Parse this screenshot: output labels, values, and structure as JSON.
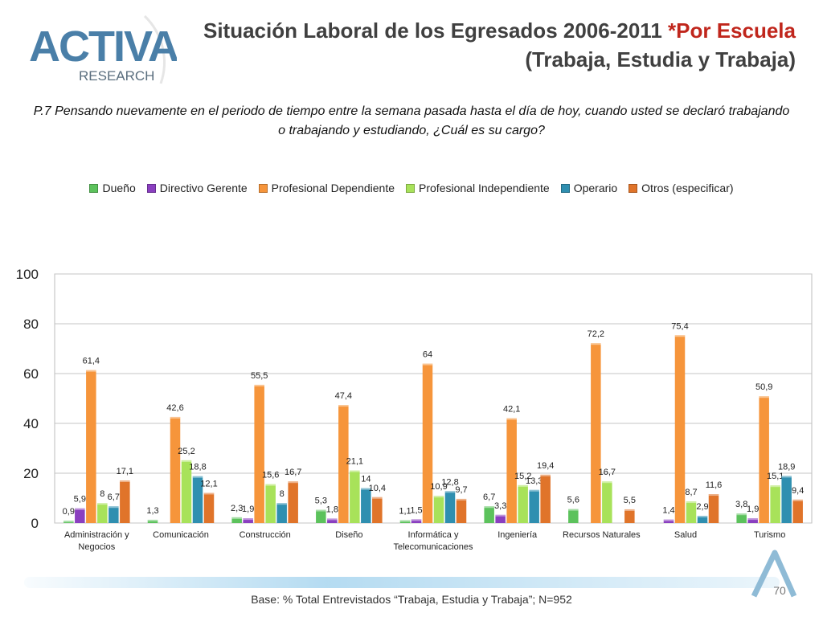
{
  "brand": {
    "name_top": "ACTIVA",
    "name_bottom": "RESEARCH"
  },
  "title": {
    "line1_main": "Situación Laboral de los Egresados 2006-2011 ",
    "line1_accent": "*Por Escuela",
    "line2": "(Trabaja, Estudia y Trabaja)"
  },
  "question": "P.7 Pensando nuevamente en el periodo de tiempo entre la semana pasada hasta el día de hoy, cuando usted se declaró trabajando o trabajando y estudiando, ¿Cuál es su cargo?",
  "footer": {
    "base": "Base: % Total Entrevistados “Trabaja, Estudia y Trabaja”; N=952",
    "page": "70"
  },
  "colors": {
    "accent": "#c0261c",
    "series": [
      "#5cc25c",
      "#8a3fc0",
      "#f6953b",
      "#a8e25a",
      "#2f8fb0",
      "#e0742a"
    ]
  },
  "chart_data": {
    "type": "bar",
    "title": "",
    "xlabel": "",
    "ylabel": "",
    "ylim": [
      0,
      100
    ],
    "yticks": [
      0,
      20,
      40,
      60,
      80,
      100
    ],
    "categories": [
      [
        "Administración y",
        "Negocios"
      ],
      [
        "Comunicación"
      ],
      [
        "Construcción"
      ],
      [
        "Diseño"
      ],
      [
        "Informática y",
        "Telecomunicaciones"
      ],
      [
        "Ingeniería"
      ],
      [
        "Recursos Naturales"
      ],
      [
        "Salud"
      ],
      [
        "Turismo"
      ]
    ],
    "series": [
      {
        "name": "Dueño",
        "values": [
          0.9,
          1.3,
          2.3,
          5.3,
          1.1,
          6.7,
          5.6,
          null,
          3.8
        ]
      },
      {
        "name": "Directivo Gerente",
        "values": [
          5.9,
          null,
          1.9,
          1.8,
          1.5,
          3.3,
          null,
          1.4,
          1.9
        ]
      },
      {
        "name": "Profesional Dependiente",
        "values": [
          61.4,
          42.6,
          55.5,
          47.4,
          64,
          42.1,
          72.2,
          75.4,
          50.9
        ]
      },
      {
        "name": "Profesional Independiente",
        "values": [
          8,
          25.2,
          15.6,
          21.1,
          10.9,
          15.2,
          16.7,
          8.7,
          15.1
        ]
      },
      {
        "name": "Operario",
        "values": [
          6.7,
          18.8,
          8,
          14,
          12.8,
          13.3,
          null,
          2.9,
          18.9
        ]
      },
      {
        "name": "Otros (especificar)",
        "values": [
          17.1,
          12.1,
          16.7,
          10.4,
          9.7,
          19.4,
          5.5,
          11.6,
          9.4
        ]
      }
    ]
  }
}
